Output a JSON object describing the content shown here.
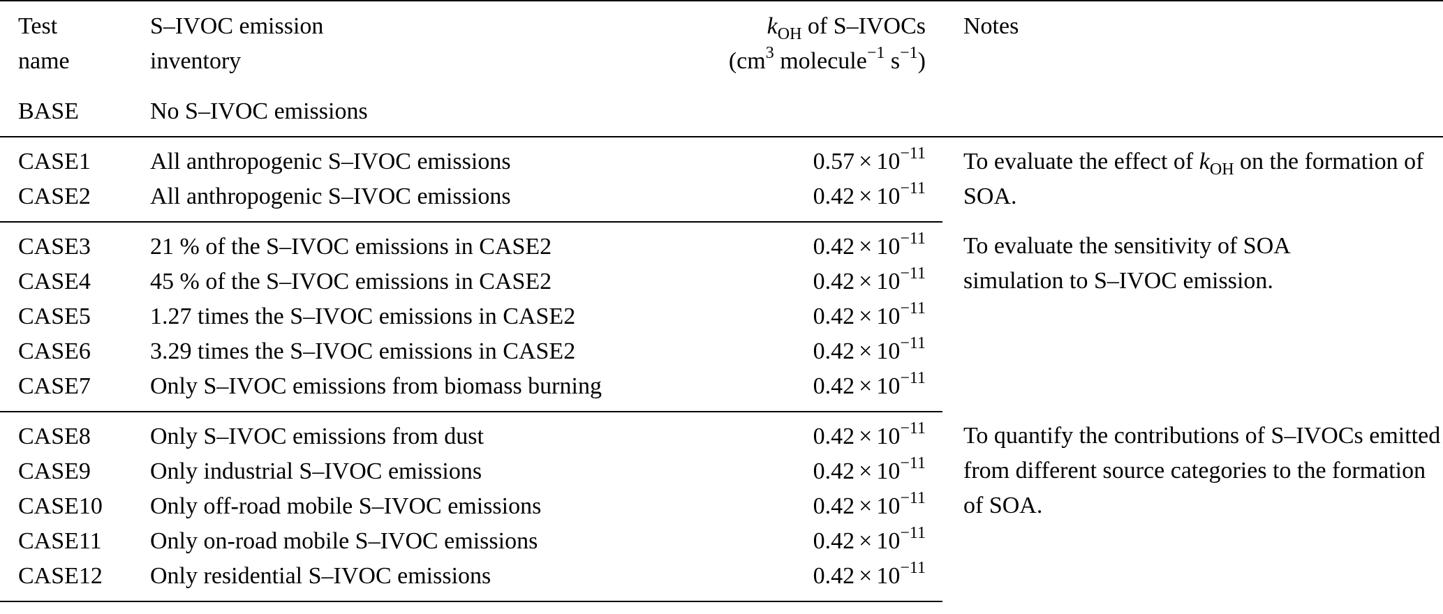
{
  "header": {
    "test_name_line1": "Test",
    "test_name_line2": "name",
    "inventory_line1": "S–IVOC emission",
    "inventory_line2": "inventory",
    "koh_k": "k",
    "koh_sub": "OH",
    "koh_rest": " of S–IVOCs",
    "units_open": "(cm",
    "units_sup1": "3",
    "units_mid": " molecule",
    "units_sup2": "−1",
    "units_s": " s",
    "units_sup3": "−1",
    "units_close": ")",
    "notes": "Notes"
  },
  "base": {
    "name": "BASE",
    "inventory": "No S–IVOC emissions"
  },
  "koh_mantissa_057": "0.57",
  "koh_mantissa_042": "0.42",
  "koh_times": "×",
  "koh_base": "10",
  "koh_exp": "−11",
  "group1": {
    "rows": [
      {
        "name": "CASE1",
        "inventory": "All anthropogenic S–IVOC emissions"
      },
      {
        "name": "CASE2",
        "inventory": "All anthropogenic S–IVOC emissions"
      }
    ],
    "note_pre": "To evaluate the effect of ",
    "note_k": "k",
    "note_sub": "OH",
    "note_post": " on the formation of SOA."
  },
  "group2": {
    "rows": [
      {
        "name": "CASE3",
        "inventory": "21 % of the S–IVOC emissions in CASE2"
      },
      {
        "name": "CASE4",
        "inventory": "45 % of the S–IVOC emissions in CASE2"
      },
      {
        "name": "CASE5",
        "inventory": "1.27 times the S–IVOC emissions in CASE2"
      },
      {
        "name": "CASE6",
        "inventory": "3.29 times the S–IVOC emissions in CASE2"
      },
      {
        "name": "CASE7",
        "inventory": "Only S–IVOC emissions from biomass burning"
      }
    ],
    "note": "To evaluate the sensitivity of SOA simulation to S–IVOC emission."
  },
  "group3": {
    "rows": [
      {
        "name": "CASE8",
        "inventory": "Only S–IVOC emissions from dust"
      },
      {
        "name": "CASE9",
        "inventory": "Only industrial S–IVOC emissions"
      },
      {
        "name": "CASE10",
        "inventory": "Only off-road mobile S–IVOC emissions"
      },
      {
        "name": "CASE11",
        "inventory": "Only on-road mobile S–IVOC emissions"
      },
      {
        "name": "CASE12",
        "inventory": "Only residential S–IVOC emissions"
      }
    ],
    "note": "To quantify the contributions of S–IVOCs emitted from different source categories to the formation of SOA."
  }
}
